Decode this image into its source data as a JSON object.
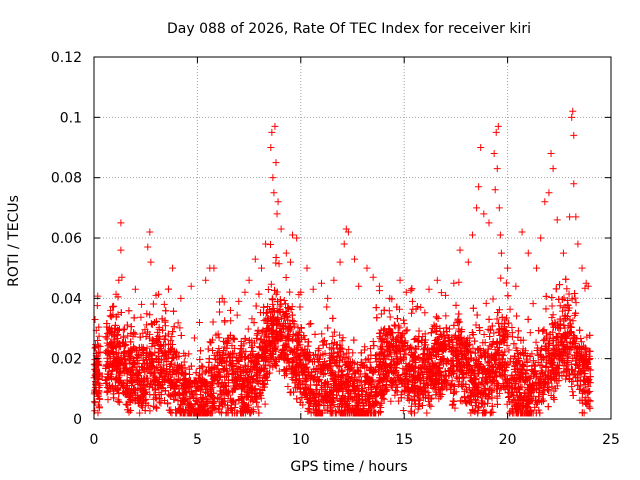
{
  "chart_data": {
    "type": "scatter",
    "title": "Day 088 of 2026, Rate Of TEC Index for receiver kiri",
    "xlabel": "GPS time / hours",
    "ylabel": "ROTI / TECUs",
    "xlim": [
      0,
      25
    ],
    "ylim": [
      0,
      0.12
    ],
    "x_ticks": [
      0,
      5,
      10,
      15,
      20,
      25
    ],
    "x_tick_labels": [
      "0",
      "5",
      "10",
      "15",
      "20",
      "25"
    ],
    "y_ticks": [
      0,
      0.02,
      0.04,
      0.06,
      0.08,
      0.1,
      0.12
    ],
    "y_tick_labels": [
      "0",
      "0.02",
      "0.04",
      "0.06",
      "0.08",
      "0.1",
      "0.12"
    ],
    "grid": true,
    "marker": "+",
    "color": "#ff0000",
    "series": [
      {
        "name": "ROTI",
        "points": [
          [
            0.05,
            0.033
          ],
          [
            0.1,
            0.012
          ],
          [
            0.15,
            0.018
          ],
          [
            0.2,
            0.02
          ],
          [
            0.25,
            0.009
          ],
          [
            0.6,
            0.018
          ],
          [
            0.7,
            0.022
          ],
          [
            0.8,
            0.036
          ],
          [
            1.0,
            0.03
          ],
          [
            1.2,
            0.046
          ],
          [
            1.3,
            0.065
          ],
          [
            1.35,
            0.047
          ],
          [
            1.3,
            0.056
          ],
          [
            2.0,
            0.043
          ],
          [
            2.3,
            0.038
          ],
          [
            2.6,
            0.057
          ],
          [
            2.7,
            0.062
          ],
          [
            2.75,
            0.052
          ],
          [
            3.0,
            0.041
          ],
          [
            3.4,
            0.038
          ],
          [
            3.8,
            0.05
          ],
          [
            4.2,
            0.04
          ],
          [
            4.7,
            0.044
          ],
          [
            5.1,
            0.032
          ],
          [
            5.4,
            0.046
          ],
          [
            5.6,
            0.05
          ],
          [
            5.8,
            0.05
          ],
          [
            6.2,
            0.04
          ],
          [
            6.6,
            0.036
          ],
          [
            7.0,
            0.039
          ],
          [
            7.3,
            0.042
          ],
          [
            7.5,
            0.046
          ],
          [
            7.8,
            0.053
          ],
          [
            8.1,
            0.05
          ],
          [
            8.3,
            0.058
          ],
          [
            8.55,
            0.09
          ],
          [
            8.6,
            0.095
          ],
          [
            8.65,
            0.08
          ],
          [
            8.7,
            0.075
          ],
          [
            8.75,
            0.097
          ],
          [
            8.8,
            0.085
          ],
          [
            8.85,
            0.068
          ],
          [
            8.9,
            0.072
          ],
          [
            9.05,
            0.063
          ],
          [
            9.3,
            0.055
          ],
          [
            9.5,
            0.052
          ],
          [
            9.6,
            0.061
          ],
          [
            9.8,
            0.06
          ],
          [
            10.0,
            0.042
          ],
          [
            10.3,
            0.05
          ],
          [
            10.6,
            0.043
          ],
          [
            11.0,
            0.045
          ],
          [
            11.3,
            0.04
          ],
          [
            11.6,
            0.046
          ],
          [
            11.9,
            0.052
          ],
          [
            12.1,
            0.058
          ],
          [
            12.2,
            0.063
          ],
          [
            12.3,
            0.062
          ],
          [
            12.6,
            0.053
          ],
          [
            12.8,
            0.044
          ],
          [
            13.2,
            0.05
          ],
          [
            13.5,
            0.047
          ],
          [
            13.8,
            0.044
          ],
          [
            14.3,
            0.04
          ],
          [
            14.8,
            0.046
          ],
          [
            15.1,
            0.042
          ],
          [
            15.4,
            0.039
          ],
          [
            15.8,
            0.037
          ],
          [
            16.2,
            0.043
          ],
          [
            16.6,
            0.046
          ],
          [
            17.0,
            0.041
          ],
          [
            17.4,
            0.045
          ],
          [
            17.7,
            0.056
          ],
          [
            18.1,
            0.052
          ],
          [
            18.3,
            0.061
          ],
          [
            18.5,
            0.07
          ],
          [
            18.6,
            0.077
          ],
          [
            18.7,
            0.09
          ],
          [
            18.85,
            0.068
          ],
          [
            19.1,
            0.065
          ],
          [
            19.35,
            0.088
          ],
          [
            19.4,
            0.076
          ],
          [
            19.45,
            0.095
          ],
          [
            19.5,
            0.083
          ],
          [
            19.55,
            0.097
          ],
          [
            19.6,
            0.07
          ],
          [
            19.65,
            0.061
          ],
          [
            19.7,
            0.055
          ],
          [
            20.0,
            0.05
          ],
          [
            20.4,
            0.044
          ],
          [
            20.7,
            0.062
          ],
          [
            21.0,
            0.055
          ],
          [
            21.4,
            0.05
          ],
          [
            21.6,
            0.06
          ],
          [
            21.8,
            0.072
          ],
          [
            22.0,
            0.075
          ],
          [
            22.1,
            0.088
          ],
          [
            22.2,
            0.083
          ],
          [
            22.4,
            0.066
          ],
          [
            22.7,
            0.055
          ],
          [
            23.0,
            0.067
          ],
          [
            23.1,
            0.1
          ],
          [
            23.15,
            0.102
          ],
          [
            23.2,
            0.094
          ],
          [
            23.2,
            0.078
          ],
          [
            23.3,
            0.067
          ],
          [
            23.4,
            0.058
          ],
          [
            23.6,
            0.05
          ],
          [
            23.8,
            0.045
          ],
          [
            23.9,
            0.044
          ],
          [
            0.4,
            0.014
          ],
          [
            0.9,
            0.011
          ],
          [
            1.6,
            0.015
          ],
          [
            2.2,
            0.012
          ],
          [
            3.1,
            0.016
          ],
          [
            3.7,
            0.013
          ],
          [
            4.4,
            0.017
          ],
          [
            5.0,
            0.011
          ],
          [
            5.9,
            0.014
          ],
          [
            6.5,
            0.012
          ],
          [
            7.2,
            0.016
          ],
          [
            7.9,
            0.018
          ],
          [
            8.4,
            0.015
          ],
          [
            9.2,
            0.02
          ],
          [
            9.9,
            0.017
          ],
          [
            10.8,
            0.014
          ],
          [
            11.5,
            0.016
          ],
          [
            12.4,
            0.019
          ],
          [
            13.1,
            0.015
          ],
          [
            13.9,
            0.013
          ],
          [
            14.6,
            0.012
          ],
          [
            15.5,
            0.011
          ],
          [
            16.3,
            0.013
          ],
          [
            17.2,
            0.016
          ],
          [
            18.0,
            0.02
          ],
          [
            18.9,
            0.022
          ],
          [
            19.8,
            0.021
          ],
          [
            20.6,
            0.018
          ],
          [
            21.3,
            0.016
          ],
          [
            22.3,
            0.017
          ],
          [
            23.0,
            0.015
          ],
          [
            23.7,
            0.014
          ],
          [
            24.0,
            0.012
          ]
        ]
      }
    ]
  }
}
